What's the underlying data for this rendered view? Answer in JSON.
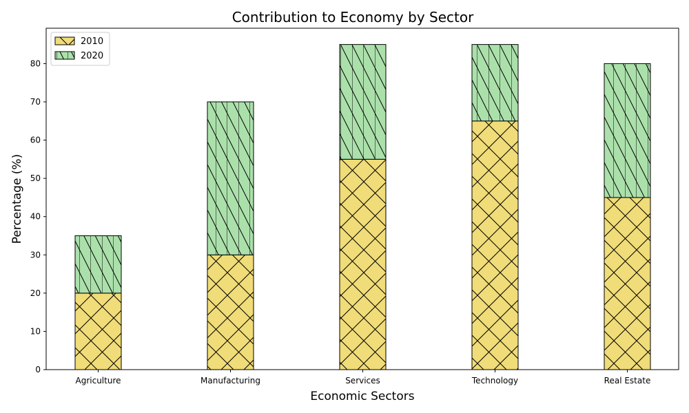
{
  "chart_data": {
    "type": "bar",
    "stacked": true,
    "title": "Contribution to Economy by Sector",
    "xlabel": "Economic Sectors",
    "ylabel": "Percentage (%)",
    "categories": [
      "Agriculture",
      "Manufacturing",
      "Services",
      "Technology",
      "Real Estate"
    ],
    "series": [
      {
        "name": "2010",
        "values": [
          20,
          30,
          55,
          65,
          45
        ],
        "color": "#f0dc78",
        "hatch": "crosshatch"
      },
      {
        "name": "2020",
        "values": [
          15,
          40,
          30,
          20,
          35
        ],
        "color": "#abe0ab",
        "hatch": "backslash-vertical"
      }
    ],
    "ylim": [
      0,
      89.25
    ],
    "yticks": [
      0,
      10,
      20,
      30,
      40,
      50,
      60,
      70,
      80
    ],
    "grid": false,
    "legend_position": "top-left"
  }
}
